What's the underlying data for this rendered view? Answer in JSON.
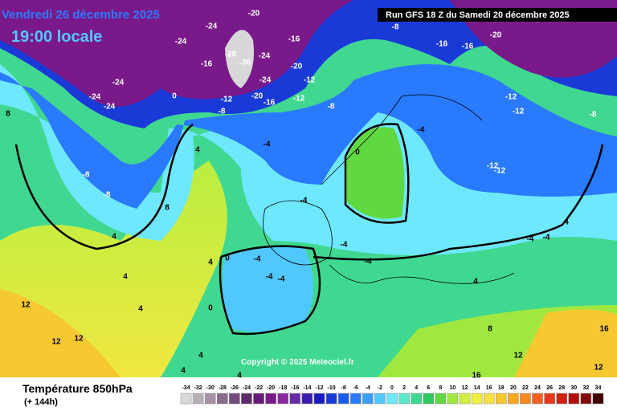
{
  "header": {
    "date": "Vendredi 26 décembre 2025",
    "time": "19:00 locale",
    "run": "Run GFS 18 Z du Samedi 20 décembre 2025"
  },
  "map": {
    "copyright": "Copyright © 2025 Meteociel.fr",
    "contour_labels": [
      "-20",
      "-24",
      "-24",
      "-16",
      "-28",
      "-36",
      "-24",
      "-16",
      "-20",
      "-12",
      "-24",
      "-20",
      "-16",
      "-12",
      "-12",
      "-8",
      "-24",
      "-24",
      "-24",
      "0",
      "-8",
      "-8",
      "-16",
      "-16",
      "-20",
      "-12",
      "-12",
      "-8",
      "-4",
      "-4",
      "-12",
      "-12",
      "-8",
      "-8",
      "4",
      "8",
      "4",
      "8",
      "0",
      "-4",
      "-4",
      "-4",
      "-4",
      "-4",
      "-4",
      "0",
      "0",
      "4",
      "4",
      "4",
      "12",
      "12",
      "12",
      "8",
      "4",
      "4",
      "12",
      "16",
      "16",
      "12",
      "4",
      "4",
      "4",
      "-4",
      "-4"
    ]
  },
  "legend": {
    "title": "Température 850hPa",
    "subtitle": "(+ 144h)",
    "values": [
      -34,
      -32,
      -30,
      -28,
      -26,
      -24,
      -22,
      -20,
      -18,
      -16,
      -14,
      -12,
      -10,
      -8,
      -6,
      -4,
      -2,
      0,
      2,
      4,
      6,
      8,
      10,
      12,
      14,
      16,
      18,
      20,
      22,
      24,
      26,
      28,
      30,
      32,
      34
    ],
    "colors": [
      "#d8d8d8",
      "#b8b0b8",
      "#a890a8",
      "#8c6a8c",
      "#744a7e",
      "#5e2a6c",
      "#6a1a7a",
      "#7a1a8a",
      "#8a2aa0",
      "#6a2aa8",
      "#3a1ab0",
      "#1a1ac0",
      "#1a3ad8",
      "#1a5af0",
      "#2a7aff",
      "#3aa0ff",
      "#50c8ff",
      "#6ee8ff",
      "#5ae8c8",
      "#40d890",
      "#30c860",
      "#60d840",
      "#a0e840",
      "#d0f040",
      "#f0f040",
      "#f8e040",
      "#f8c830",
      "#f8a820",
      "#f88820",
      "#f86020",
      "#e83818",
      "#d02010",
      "#b01008",
      "#800808",
      "#400000"
    ]
  }
}
